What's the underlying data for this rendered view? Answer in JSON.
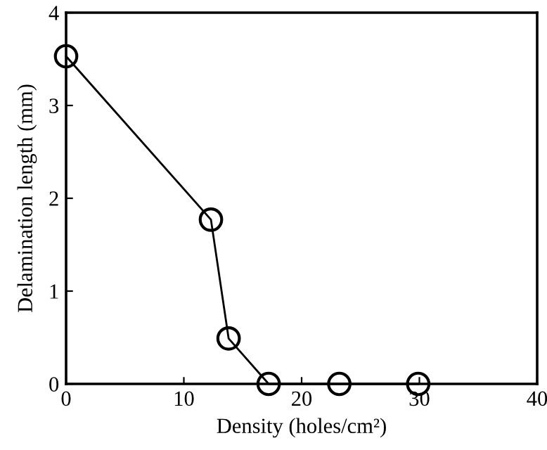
{
  "chart_data": {
    "type": "line",
    "xlabel": "Density (holes/cm²)",
    "ylabel": "Delamination length (mm)",
    "series": [
      {
        "color": "#000000",
        "x": [
          0,
          12.3,
          13.8,
          17.2,
          23.2,
          29.9
        ],
        "values": [
          3.53,
          1.77,
          0.49,
          0,
          0,
          0
        ]
      }
    ],
    "xlim": [
      0,
      40
    ],
    "ylim": [
      0,
      4
    ],
    "xticks": [
      0,
      10,
      20,
      30,
      40
    ],
    "yticks": [
      0,
      1,
      2,
      3,
      4
    ],
    "marker": "circle",
    "line_style": "solid",
    "grid": false,
    "legend": false
  }
}
